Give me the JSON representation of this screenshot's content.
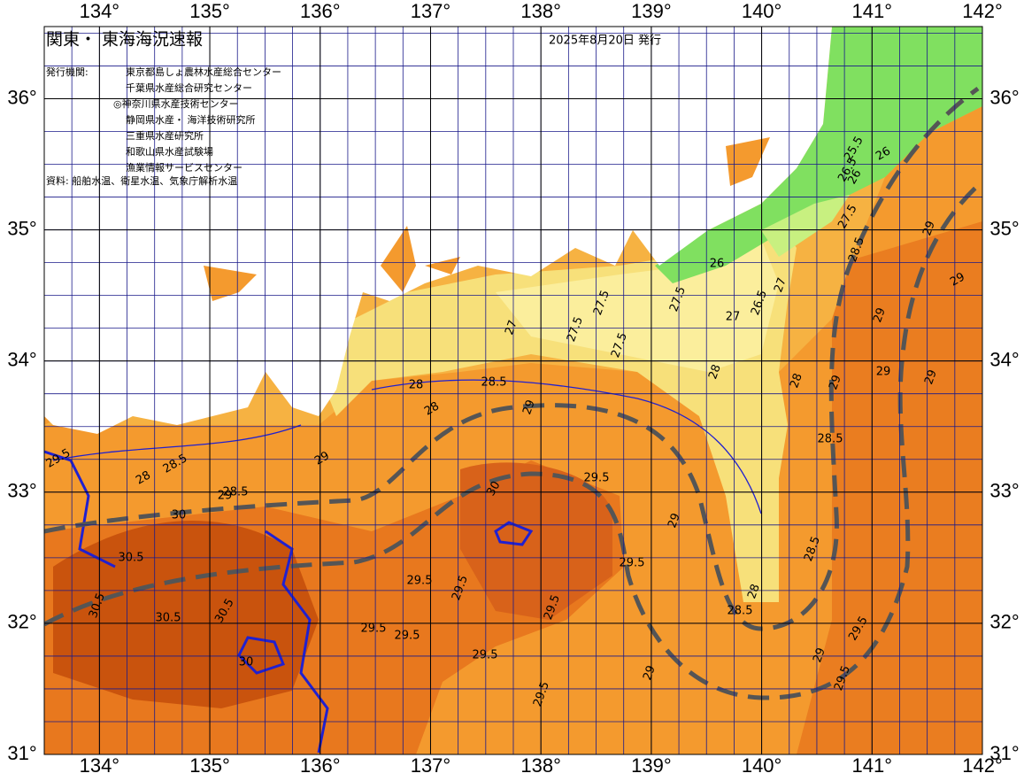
{
  "header": {
    "title": "関東・ 東海海況速報",
    "issued": "2025年8月20日 発行"
  },
  "issuers": {
    "label": "発行機関:",
    "names": [
      "東京都島しょ農林水産総合センター",
      "千葉県水産総合研究センター",
      "◎神奈川県水産技術センター",
      "静岡県水産・ 海洋技術研究所",
      "三重県水産研究所",
      "和歌山県水産試験場",
      "漁業情報サービスセンター"
    ]
  },
  "source": "資料: 船舶水温、衛星水温、気象庁解析水温",
  "map": {
    "xlim": [
      133.5,
      142.0
    ],
    "ylim": [
      31,
      36.55
    ],
    "xticks": [
      {
        "value": 134,
        "label": "134°"
      },
      {
        "value": 135,
        "label": "135°"
      },
      {
        "value": 136,
        "label": "136°"
      },
      {
        "value": 137,
        "label": "137°"
      },
      {
        "value": 138,
        "label": "138°"
      },
      {
        "value": 139,
        "label": "139°"
      },
      {
        "value": 140,
        "label": "140°"
      },
      {
        "value": 141,
        "label": "141°"
      },
      {
        "value": 142,
        "label": "142°"
      }
    ],
    "yticks": [
      {
        "value": 31,
        "label": "31°"
      },
      {
        "value": 32,
        "label": "32°"
      },
      {
        "value": 33,
        "label": "33°"
      },
      {
        "value": 34,
        "label": "34°"
      },
      {
        "value": 35,
        "label": "35°"
      },
      {
        "value": 36,
        "label": "36°"
      }
    ],
    "contour_labels": [
      25.5,
      26.5,
      26,
      26,
      27.5,
      28.5,
      29,
      29,
      26,
      27,
      26.5,
      27,
      27.5,
      27.5,
      27.5,
      27.5,
      27,
      28,
      28,
      28,
      28.5,
      29,
      28.5,
      28,
      29,
      29,
      29,
      28.5,
      29.5,
      29,
      28.5,
      28,
      28.5,
      29,
      29.5,
      29.5,
      30,
      29.5,
      29.5,
      29.5,
      29.5,
      29.5,
      29.5,
      30.5,
      30.5,
      30.5,
      30,
      30.5,
      30,
      28.5,
      28,
      29,
      29.5,
      29.5,
      29,
      29.5,
      29,
      29
    ]
  }
}
